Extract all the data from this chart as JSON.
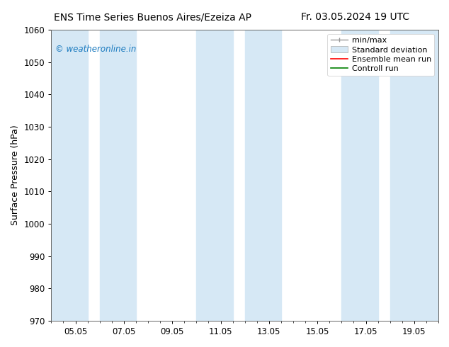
{
  "title_left": "ENS Time Series Buenos Aires/Ezeiza AP",
  "title_right": "Fr. 03.05.2024 19 UTC",
  "ylabel": "Surface Pressure (hPa)",
  "ylim": [
    970,
    1060
  ],
  "yticks": [
    970,
    980,
    990,
    1000,
    1010,
    1020,
    1030,
    1040,
    1050,
    1060
  ],
  "x_labels": [
    "05.05",
    "07.05",
    "09.05",
    "11.05",
    "13.05",
    "15.05",
    "17.05",
    "19.05"
  ],
  "x_positions": [
    1,
    3,
    5,
    7,
    9,
    11,
    13,
    15
  ],
  "xlim": [
    0,
    16
  ],
  "shaded_bands": [
    {
      "x_start": 0.0,
      "x_end": 1.5,
      "color": "#d6e8f5",
      "alpha": 1.0
    },
    {
      "x_start": 2.0,
      "x_end": 3.5,
      "color": "#d6e8f5",
      "alpha": 1.0
    },
    {
      "x_start": 6.0,
      "x_end": 7.5,
      "color": "#d6e8f5",
      "alpha": 1.0
    },
    {
      "x_start": 8.0,
      "x_end": 9.5,
      "color": "#d6e8f5",
      "alpha": 1.0
    },
    {
      "x_start": 12.0,
      "x_end": 13.5,
      "color": "#d6e8f5",
      "alpha": 1.0
    },
    {
      "x_start": 14.0,
      "x_end": 16.0,
      "color": "#d6e8f5",
      "alpha": 1.0
    }
  ],
  "watermark_text": "© weatheronline.in",
  "watermark_color": "#1a7abf",
  "bg_color": "#ffffff",
  "title_fontsize": 10,
  "label_fontsize": 9,
  "tick_fontsize": 8.5,
  "legend_fontsize": 8
}
